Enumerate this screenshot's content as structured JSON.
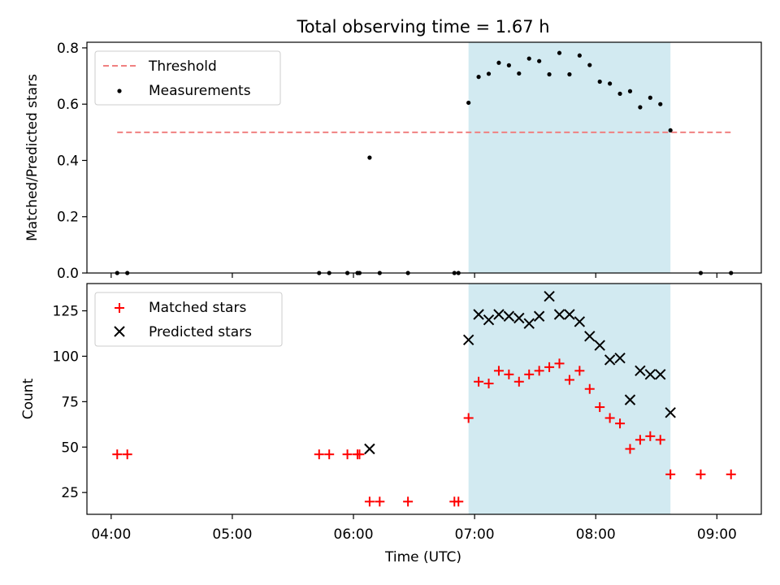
{
  "figure_title": "Total observing time = 1.67 h",
  "chart_data": [
    {
      "type": "scatter",
      "panel": "top",
      "title": "Total observing time = 1.67 h",
      "xlabel": "",
      "ylabel": "Matched/Predicted stars",
      "x_unit": "UTC time",
      "xlim": [
        "03:48",
        "09:22"
      ],
      "ylim": [
        0,
        0.82
      ],
      "yticks": [
        0.0,
        0.2,
        0.4,
        0.6,
        0.8
      ],
      "ytick_labels": [
        "0.0",
        "0.2",
        "0.4",
        "0.6",
        "0.8"
      ],
      "legend_position": "top-left",
      "shaded_interval": {
        "start": "06:57",
        "end": "08:37",
        "color": "#add8e6"
      },
      "threshold": {
        "name": "Threshold",
        "value": 0.5,
        "x_start": "04:03",
        "x_end": "09:08",
        "color": "#f08080",
        "style": "dashed"
      },
      "series": [
        {
          "name": "Measurements",
          "marker": "dot",
          "color": "#000000",
          "x": [
            "04:03",
            "04:08",
            "05:43",
            "05:48",
            "05:57",
            "06:02",
            "06:03",
            "06:08",
            "06:13",
            "06:27",
            "06:50",
            "06:52",
            "06:57",
            "07:02",
            "07:07",
            "07:12",
            "07:17",
            "07:22",
            "07:27",
            "07:32",
            "07:37",
            "07:42",
            "07:47",
            "07:52",
            "07:57",
            "08:02",
            "08:07",
            "08:12",
            "08:17",
            "08:22",
            "08:27",
            "08:32",
            "08:37",
            "08:52",
            "09:07"
          ],
          "y": [
            0,
            0,
            0,
            0,
            0,
            0,
            0,
            0.41,
            0,
            0,
            0,
            0,
            0.605,
            0.697,
            0.708,
            0.747,
            0.738,
            0.709,
            0.762,
            0.753,
            0.706,
            0.782,
            0.706,
            0.773,
            0.739,
            0.68,
            0.673,
            0.637,
            0.646,
            0.589,
            0.623,
            0.6,
            0.507,
            0,
            0
          ]
        }
      ]
    },
    {
      "type": "scatter",
      "panel": "bottom",
      "xlabel": "Time (UTC)",
      "ylabel": "Count",
      "x_unit": "UTC time",
      "xlim": [
        "03:48",
        "09:22"
      ],
      "ylim": [
        13,
        140
      ],
      "xticks": [
        "04:00",
        "05:00",
        "06:00",
        "07:00",
        "08:00",
        "09:00"
      ],
      "xtick_labels": [
        "04:00",
        "05:00",
        "06:00",
        "07:00",
        "08:00",
        "09:00"
      ],
      "yticks": [
        25,
        50,
        75,
        100,
        125
      ],
      "ytick_labels": [
        "25",
        "50",
        "75",
        "100",
        "125"
      ],
      "legend_position": "top-left",
      "shaded_interval": {
        "start": "06:57",
        "end": "08:37",
        "color": "#add8e6"
      },
      "series": [
        {
          "name": "Matched stars",
          "marker": "plus",
          "color": "#ff0000",
          "x": [
            "04:03",
            "04:08",
            "05:43",
            "05:48",
            "05:57",
            "06:02",
            "06:03",
            "06:08",
            "06:13",
            "06:27",
            "06:50",
            "06:52",
            "06:57",
            "07:02",
            "07:07",
            "07:12",
            "07:17",
            "07:22",
            "07:27",
            "07:32",
            "07:37",
            "07:42",
            "07:47",
            "07:52",
            "07:57",
            "08:02",
            "08:07",
            "08:12",
            "08:17",
            "08:22",
            "08:27",
            "08:32",
            "08:37",
            "08:52",
            "09:07"
          ],
          "y": [
            46,
            46,
            46,
            46,
            46,
            46,
            46,
            20,
            20,
            20,
            20,
            20,
            66,
            86,
            85,
            92,
            90,
            86,
            90,
            92,
            94,
            96,
            87,
            92,
            82,
            72,
            66,
            63,
            49,
            54,
            56,
            54,
            35,
            35,
            35
          ]
        },
        {
          "name": "Predicted stars",
          "marker": "x",
          "color": "#000000",
          "x": [
            "06:08",
            "06:57",
            "07:02",
            "07:07",
            "07:12",
            "07:17",
            "07:22",
            "07:27",
            "07:32",
            "07:37",
            "07:42",
            "07:47",
            "07:52",
            "07:57",
            "08:02",
            "08:07",
            "08:12",
            "08:17",
            "08:22",
            "08:27",
            "08:32",
            "08:37"
          ],
          "y": [
            49,
            109,
            123,
            120,
            123,
            122,
            121,
            118,
            122,
            133,
            123,
            123,
            119,
            111,
            106,
            98,
            99,
            76,
            92,
            90,
            90,
            69
          ]
        }
      ]
    }
  ]
}
